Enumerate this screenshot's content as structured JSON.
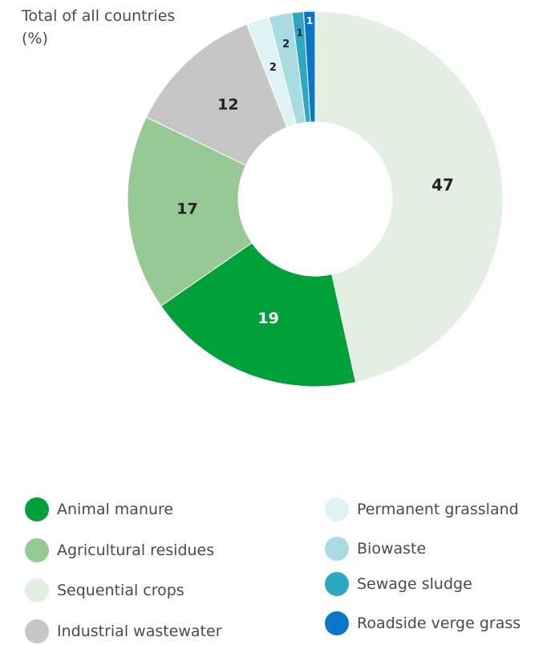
{
  "title": {
    "line1": "Total of all countries",
    "line2": "(%)"
  },
  "chart_data": {
    "type": "pie",
    "variant": "donut",
    "title": "Total of all countries (%)",
    "unit": "%",
    "slices": [
      {
        "label": "Sequential crops",
        "value": 47,
        "color": "#e2efe2",
        "text": "47",
        "text_color": "#222222"
      },
      {
        "label": "Animal manure",
        "value": 19,
        "color": "#00a03a",
        "text": "19",
        "text_color": "#ffffff"
      },
      {
        "label": "Agricultural residues",
        "value": 17,
        "color": "#97c995",
        "text": "17",
        "text_color": "#222222"
      },
      {
        "label": "Industrial wastewater",
        "value": 12,
        "color": "#c7c6c6",
        "text": "12",
        "text_color": "#222222"
      },
      {
        "label": "Permanent grassland",
        "value": 2,
        "color": "#dff3f6",
        "text": "2",
        "text_color": "#222222"
      },
      {
        "label": "Biowaste",
        "value": 2,
        "color": "#a9dbe3",
        "text": "2",
        "text_color": "#222222"
      },
      {
        "label": "Sewage sludge",
        "value": 1,
        "color": "#2ea7c1",
        "text": "1",
        "text_color": "#222222"
      },
      {
        "label": "Roadside verge grass",
        "value": 1,
        "color": "#0a77c6",
        "text": "1",
        "text_color": "#ffffff"
      }
    ],
    "legend_placement": "bottom"
  },
  "legend": {
    "left": [
      {
        "label": "Animal manure",
        "color": "#00a03a"
      },
      {
        "label": "Agricultural residues",
        "color": "#97c995"
      },
      {
        "label": "Sequential crops",
        "color": "#e2efe2"
      },
      {
        "label": "Industrial wastewater",
        "color": "#c7c6c6"
      }
    ],
    "right": [
      {
        "label": "Permanent grassland",
        "color": "#dff3f6"
      },
      {
        "label": "Biowaste",
        "color": "#a9dbe3"
      },
      {
        "label": "Sewage sludge",
        "color": "#2ea7c1"
      },
      {
        "label": "Roadside verge grass",
        "color": "#0a77c6"
      }
    ]
  }
}
